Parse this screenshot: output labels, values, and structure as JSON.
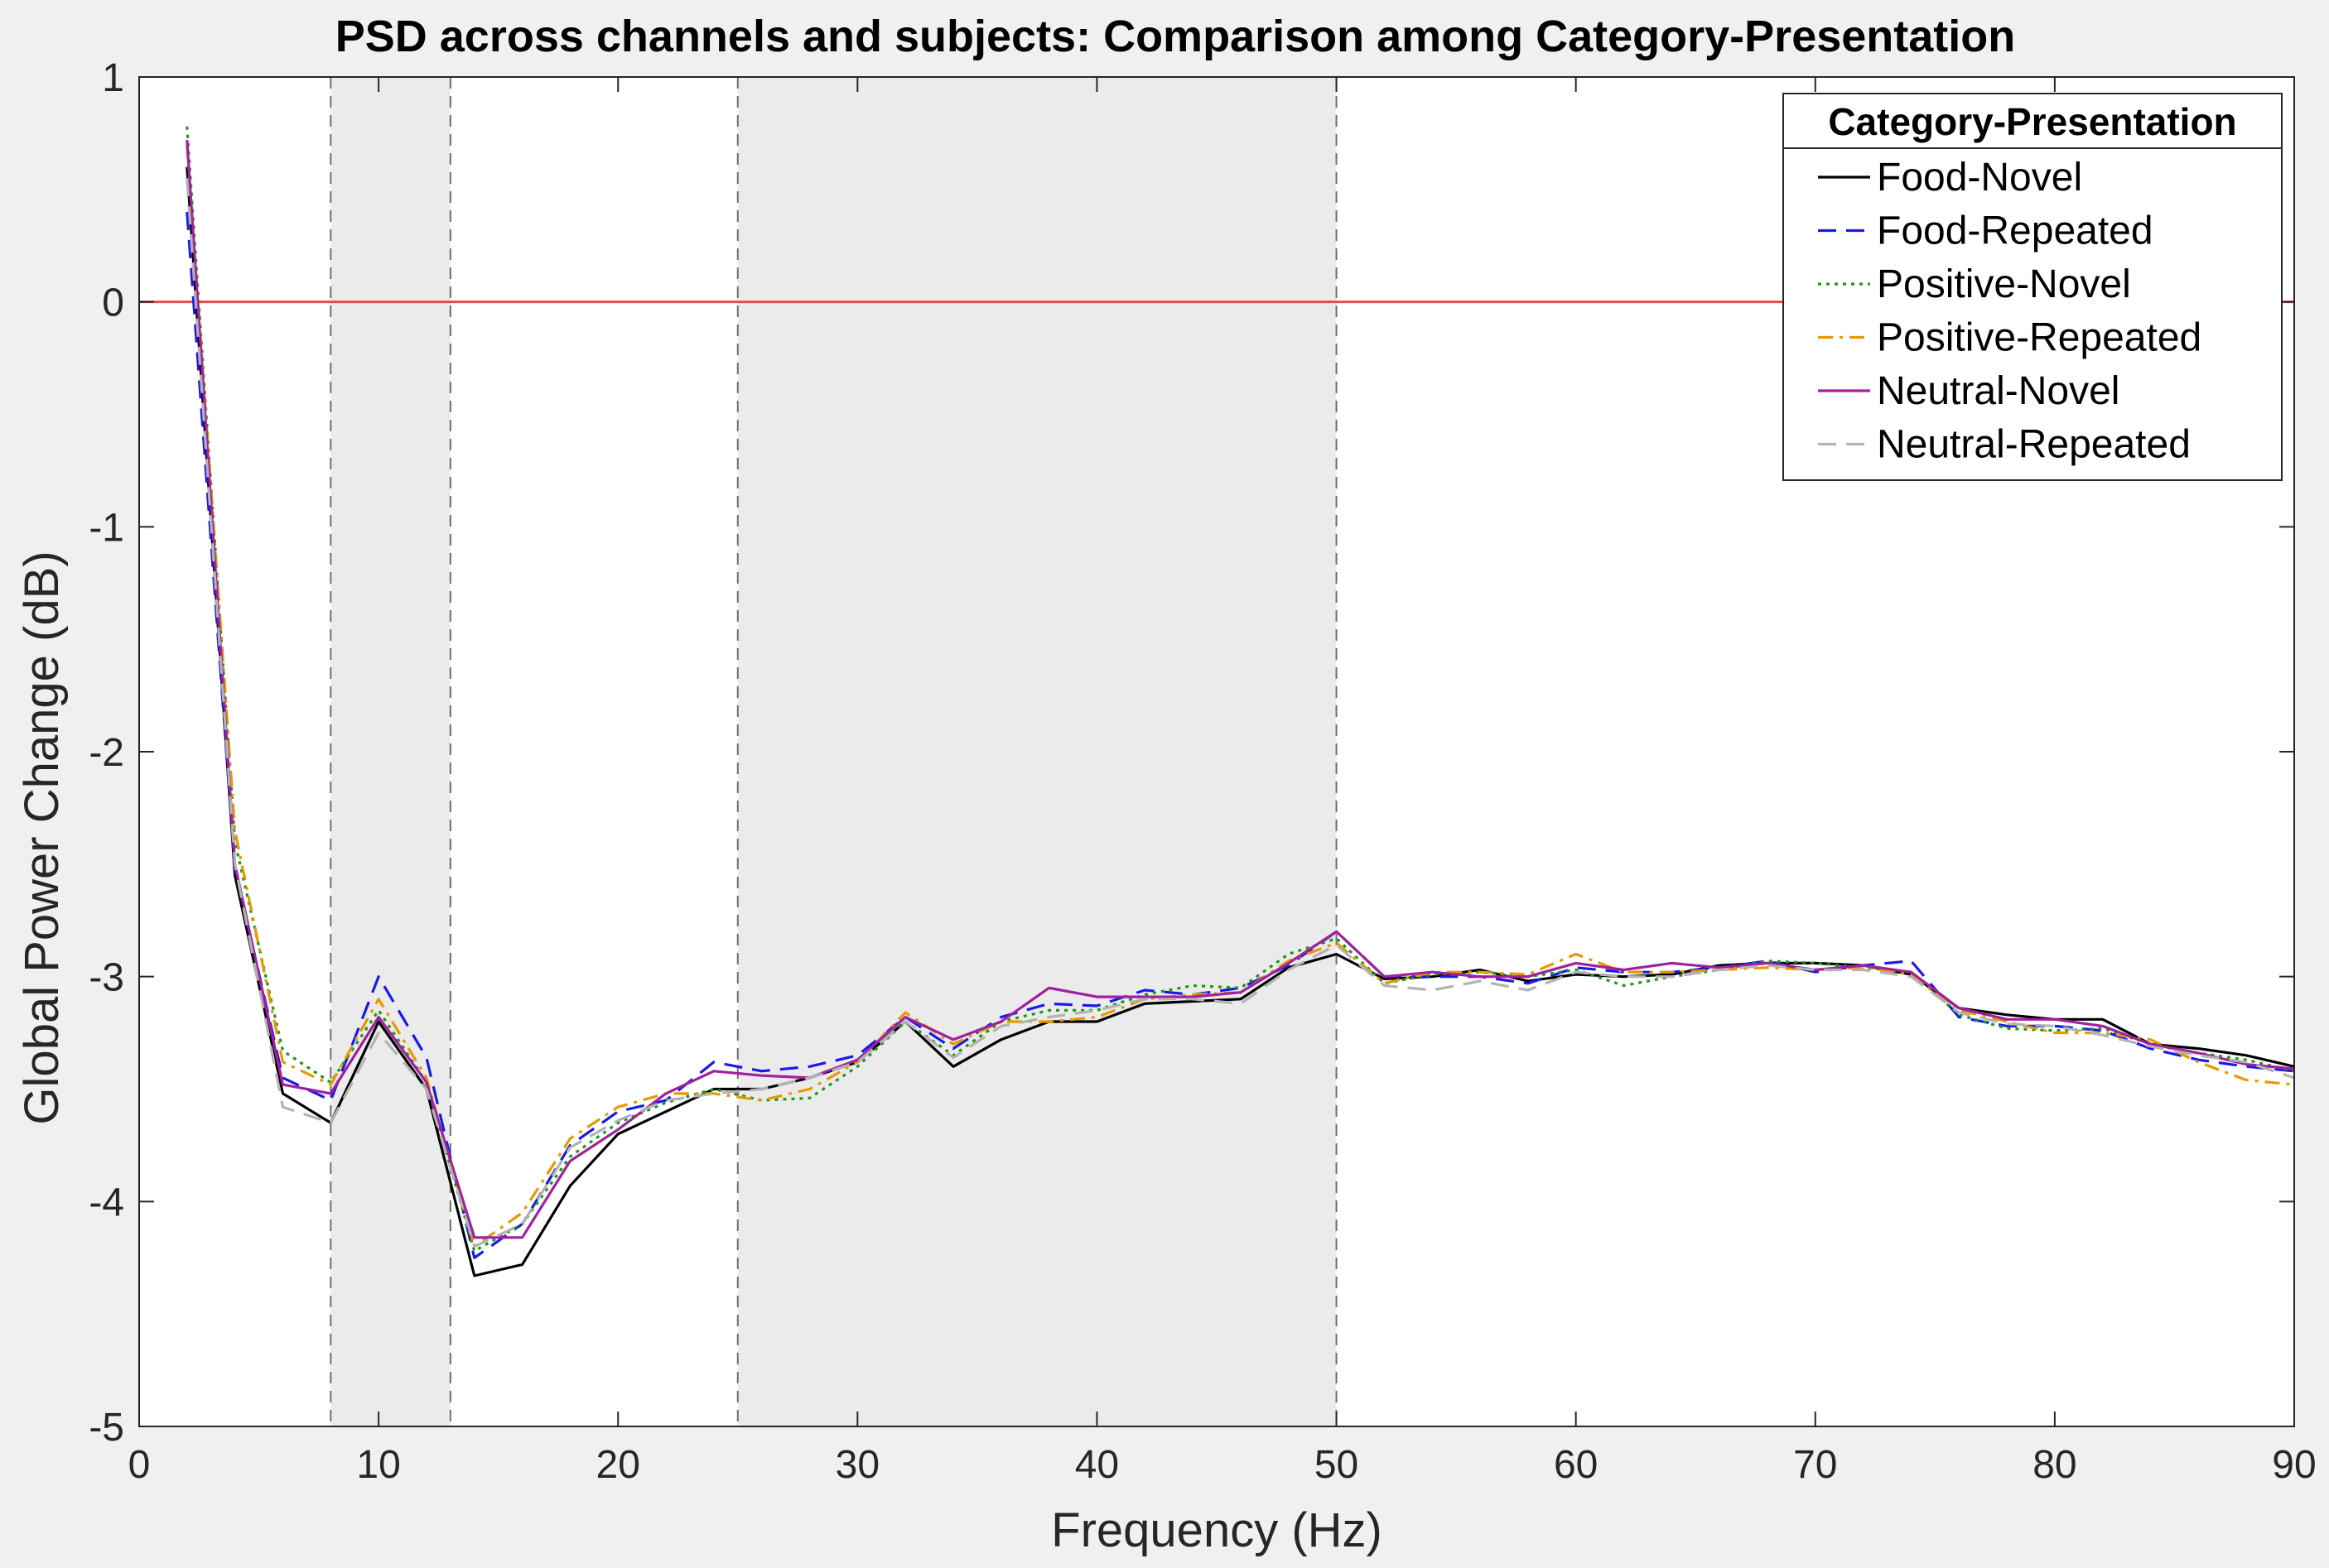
{
  "chart_data": {
    "type": "line",
    "title": "PSD across channels and subjects: Comparison among Category-Presentation",
    "xlabel": "Frequency (Hz)",
    "ylabel": "Global Power Change (dB)",
    "xlim": [
      0,
      90
    ],
    "ylim": [
      -5,
      1
    ],
    "xticks": [
      "0",
      "10",
      "20",
      "30",
      "40",
      "50",
      "60",
      "70",
      "80",
      "90"
    ],
    "yticks": [
      "1",
      "0",
      "-1",
      "-2",
      "-3",
      "-4",
      "-5"
    ],
    "grid": false,
    "reference_line": {
      "y": 0,
      "color": "#e84a4a"
    },
    "shaded_bands": [
      {
        "x0": 8,
        "x1": 13,
        "color": "#ebebeb"
      },
      {
        "x0": 25,
        "x1": 50,
        "color": "#ebebeb"
      }
    ],
    "legend": {
      "title": "Category-Presentation",
      "placement": "top-right"
    },
    "x": [
      2,
      4,
      6,
      8,
      10,
      12,
      14,
      16,
      18,
      20,
      22,
      24,
      26,
      28,
      30,
      32,
      34,
      36,
      38,
      40,
      42,
      44,
      46,
      48,
      50,
      52,
      54,
      56,
      58,
      60,
      62,
      64,
      66,
      68,
      70,
      72,
      74,
      76,
      78,
      80,
      82,
      84,
      86,
      88,
      90
    ],
    "series": [
      {
        "name": "Food-Novel",
        "color": "#000000",
        "dash": "solid",
        "values": [
          0.6,
          -2.55,
          -3.52,
          -3.65,
          -3.2,
          -3.5,
          -4.33,
          -4.28,
          -3.93,
          -3.7,
          -3.6,
          -3.5,
          -3.5,
          -3.45,
          -3.38,
          -3.2,
          -3.4,
          -3.28,
          -3.2,
          -3.2,
          -3.12,
          -3.11,
          -3.1,
          -2.96,
          -2.9,
          -3.01,
          -3.0,
          -2.97,
          -3.02,
          -2.99,
          -3.0,
          -2.99,
          -2.95,
          -2.94,
          -2.94,
          -2.95,
          -2.99,
          -3.14,
          -3.17,
          -3.19,
          -3.19,
          -3.3,
          -3.32,
          -3.35,
          -3.4
        ]
      },
      {
        "name": "Food-Repeated",
        "color": "#1a1ae6",
        "dash": "dashed",
        "values": [
          0.4,
          -2.52,
          -3.45,
          -3.55,
          -3.0,
          -3.36,
          -4.25,
          -4.1,
          -3.75,
          -3.6,
          -3.55,
          -3.38,
          -3.42,
          -3.4,
          -3.35,
          -3.18,
          -3.32,
          -3.18,
          -3.12,
          -3.13,
          -3.06,
          -3.08,
          -3.05,
          -2.95,
          -2.8,
          -3.0,
          -3.0,
          -3.0,
          -3.03,
          -2.96,
          -2.98,
          -2.98,
          -2.96,
          -2.93,
          -2.98,
          -2.95,
          -2.93,
          -3.18,
          -3.22,
          -3.22,
          -3.24,
          -3.32,
          -3.37,
          -3.4,
          -3.42
        ]
      },
      {
        "name": "Positive-Novel",
        "color": "#1a991a",
        "dash": "dotted",
        "values": [
          0.78,
          -2.4,
          -3.33,
          -3.47,
          -3.15,
          -3.47,
          -4.22,
          -4.1,
          -3.8,
          -3.65,
          -3.56,
          -3.5,
          -3.55,
          -3.54,
          -3.4,
          -3.2,
          -3.35,
          -3.2,
          -3.15,
          -3.15,
          -3.08,
          -3.04,
          -3.05,
          -2.9,
          -2.83,
          -3.03,
          -2.99,
          -2.98,
          -3.0,
          -2.97,
          -3.04,
          -3.0,
          -2.97,
          -2.93,
          -2.94,
          -2.96,
          -2.98,
          -3.17,
          -3.23,
          -3.24,
          -3.23,
          -3.3,
          -3.34,
          -3.37,
          -3.42
        ]
      },
      {
        "name": "Positive-Repeated",
        "color": "#e69900",
        "dash": "dashdot",
        "values": [
          0.7,
          -2.35,
          -3.38,
          -3.48,
          -3.1,
          -3.45,
          -4.2,
          -4.05,
          -3.72,
          -3.58,
          -3.52,
          -3.52,
          -3.55,
          -3.5,
          -3.38,
          -3.16,
          -3.3,
          -3.2,
          -3.2,
          -3.18,
          -3.1,
          -3.08,
          -3.07,
          -2.93,
          -2.85,
          -3.03,
          -2.98,
          -2.98,
          -2.99,
          -2.9,
          -2.98,
          -2.98,
          -2.97,
          -2.96,
          -2.97,
          -2.96,
          -2.99,
          -3.15,
          -3.2,
          -3.25,
          -3.25,
          -3.28,
          -3.38,
          -3.46,
          -3.48
        ]
      },
      {
        "name": "Neutral-Novel",
        "color": "#a020a0",
        "dash": "solid",
        "values": [
          0.72,
          -2.5,
          -3.48,
          -3.52,
          -3.18,
          -3.47,
          -4.16,
          -4.16,
          -3.82,
          -3.68,
          -3.52,
          -3.42,
          -3.44,
          -3.45,
          -3.37,
          -3.18,
          -3.28,
          -3.2,
          -3.05,
          -3.09,
          -3.09,
          -3.09,
          -3.07,
          -2.94,
          -2.8,
          -3.0,
          -2.98,
          -3.0,
          -3.0,
          -2.94,
          -2.97,
          -2.94,
          -2.96,
          -2.94,
          -2.97,
          -2.95,
          -2.98,
          -3.14,
          -3.19,
          -3.19,
          -3.22,
          -3.3,
          -3.34,
          -3.39,
          -3.41
        ]
      },
      {
        "name": "Neutral-Repeated",
        "color": "#b3b3b3",
        "dash": "dashed",
        "values": [
          0.55,
          -2.5,
          -3.58,
          -3.65,
          -3.25,
          -3.5,
          -4.2,
          -4.1,
          -3.76,
          -3.64,
          -3.55,
          -3.52,
          -3.5,
          -3.45,
          -3.38,
          -3.2,
          -3.36,
          -3.22,
          -3.18,
          -3.15,
          -3.1,
          -3.1,
          -3.12,
          -2.97,
          -2.86,
          -3.04,
          -3.06,
          -3.02,
          -3.06,
          -2.98,
          -3.0,
          -3.0,
          -2.97,
          -2.95,
          -2.97,
          -2.97,
          -3.0,
          -3.16,
          -3.21,
          -3.22,
          -3.26,
          -3.31,
          -3.35,
          -3.38,
          -3.45
        ]
      }
    ]
  }
}
